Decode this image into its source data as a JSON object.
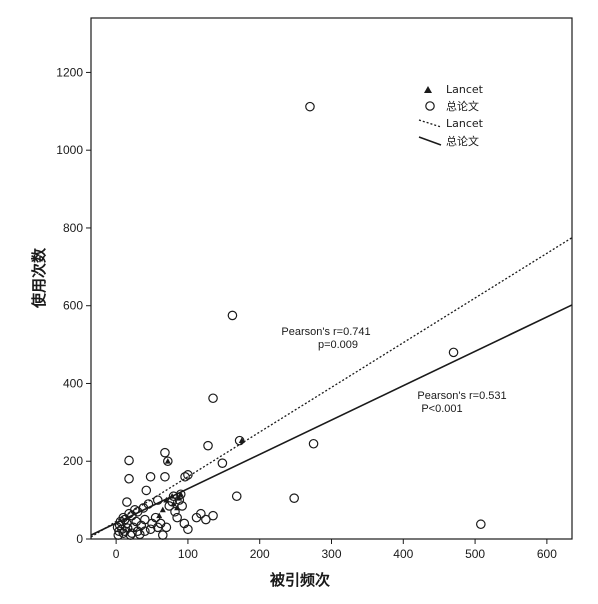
{
  "chart_data": {
    "type": "scatter",
    "xlabel": "被引频次",
    "ylabel": "使用次数",
    "xlim": [
      -35,
      635
    ],
    "ylim": [
      0,
      1340
    ],
    "xticks": [
      0,
      100,
      200,
      300,
      400,
      500,
      600
    ],
    "yticks": [
      0,
      200,
      400,
      600,
      800,
      1000,
      1200
    ],
    "grid": false,
    "legend_position": "top-right",
    "legend": [
      {
        "label": "Lancet",
        "marker": "filled-triangle"
      },
      {
        "label": "总论文",
        "marker": "open-circle"
      },
      {
        "label": "Lancet",
        "marker": "dotted-line"
      },
      {
        "label": "总论文",
        "marker": "solid-line"
      }
    ],
    "series": [
      {
        "name": "Lancet",
        "marker": "filled-triangle",
        "points": [
          [
            72,
            200
          ],
          [
            175,
            253
          ],
          [
            70,
            100
          ],
          [
            78,
            110
          ],
          [
            80,
            90
          ],
          [
            85,
            80
          ],
          [
            65,
            75
          ],
          [
            90,
            115
          ],
          [
            60,
            60
          ],
          [
            88,
            105
          ]
        ]
      },
      {
        "name": "总论文",
        "marker": "open-circle",
        "points": [
          [
            270,
            1112
          ],
          [
            162,
            575
          ],
          [
            470,
            480
          ],
          [
            135,
            362
          ],
          [
            275,
            245
          ],
          [
            128,
            240
          ],
          [
            68,
            222
          ],
          [
            148,
            195
          ],
          [
            18,
            202
          ],
          [
            72,
            200
          ],
          [
            100,
            165
          ],
          [
            68,
            160
          ],
          [
            48,
            160
          ],
          [
            96,
            160
          ],
          [
            172,
            253
          ],
          [
            18,
            155
          ],
          [
            168,
            110
          ],
          [
            248,
            105
          ],
          [
            508,
            38
          ],
          [
            42,
            125
          ],
          [
            80,
            110
          ],
          [
            90,
            115
          ],
          [
            88,
            100
          ],
          [
            78,
            96
          ],
          [
            58,
            100
          ],
          [
            45,
            90
          ],
          [
            38,
            80
          ],
          [
            26,
            75
          ],
          [
            30,
            70
          ],
          [
            18,
            65
          ],
          [
            22,
            60
          ],
          [
            10,
            55
          ],
          [
            12,
            50
          ],
          [
            6,
            45
          ],
          [
            15,
            40
          ],
          [
            5,
            35
          ],
          [
            2,
            30
          ],
          [
            8,
            25
          ],
          [
            4,
            20
          ],
          [
            10,
            15
          ],
          [
            20,
            10
          ],
          [
            30,
            20
          ],
          [
            35,
            35
          ],
          [
            28,
            45
          ],
          [
            24,
            30
          ],
          [
            40,
            50
          ],
          [
            50,
            40
          ],
          [
            55,
            55
          ],
          [
            62,
            40
          ],
          [
            70,
            30
          ],
          [
            85,
            55
          ],
          [
            95,
            40
          ],
          [
            100,
            25
          ],
          [
            112,
            55
          ],
          [
            118,
            65
          ],
          [
            125,
            50
          ],
          [
            135,
            60
          ],
          [
            82,
            70
          ],
          [
            74,
            85
          ],
          [
            92,
            85
          ],
          [
            15,
            95
          ],
          [
            12,
            20
          ],
          [
            22,
            15
          ],
          [
            40,
            20
          ],
          [
            48,
            25
          ],
          [
            58,
            30
          ],
          [
            65,
            10
          ],
          [
            3,
            10
          ],
          [
            16,
            28
          ],
          [
            33,
            12
          ]
        ]
      }
    ],
    "fit_lines": [
      {
        "name": "Lancet",
        "style": "dotted",
        "from": [
          -35,
          5
        ],
        "to": [
          635,
          775
        ]
      },
      {
        "name": "总论文",
        "style": "solid",
        "from": [
          -35,
          10
        ],
        "to": [
          635,
          602
        ]
      }
    ],
    "annotations": [
      {
        "line1": "Pearson's r=0.741",
        "line2": "p=0.009"
      },
      {
        "line1": "Pearson's r=0.531",
        "line2": "P<0.001"
      }
    ]
  }
}
